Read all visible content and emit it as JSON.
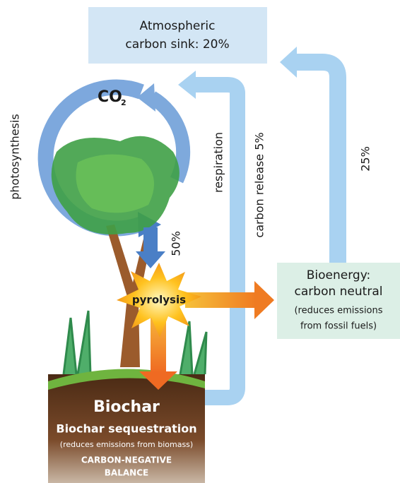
{
  "atmosphere": {
    "lines": [
      "Atmospheric",
      "carbon sink: 20%"
    ]
  },
  "co2": {
    "text": "CO",
    "subscript": "2"
  },
  "flows": {
    "photosynthesis": "photosynthesis",
    "respiration": "respiration",
    "carbon_release": "carbon release 5%",
    "bioenergy_return": "25%",
    "to_pyrolysis": "50%"
  },
  "pyrolysis": "pyrolysis",
  "bioenergy": {
    "title": [
      "Bioenergy:",
      "carbon neutral"
    ],
    "note": [
      "(reduces emissions",
      "from fossil fuels)"
    ]
  },
  "biochar": {
    "title": "Biochar",
    "subtitle": "Biochar sequestration",
    "note": "(reduces emissions from biomass)",
    "balance": [
      "CARBON-NEGATIVE",
      "BALANCE"
    ]
  }
}
